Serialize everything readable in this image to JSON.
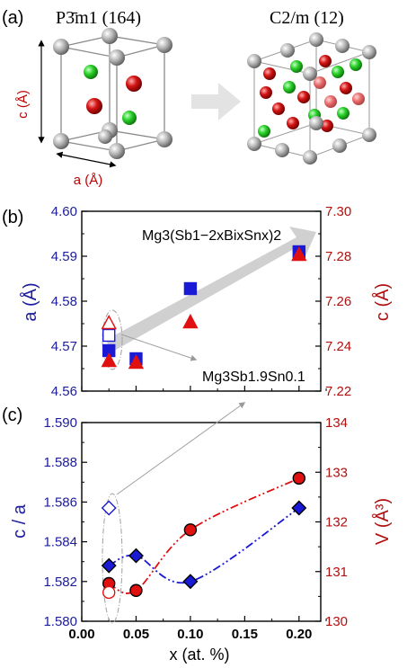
{
  "panels": {
    "a": "(a)",
    "b": "(b)",
    "c": "(c)"
  },
  "structures": {
    "left_space_group": "P3̄m1 (164)",
    "right_space_group": "C2/m (12)",
    "c_axis_label": "c (Å)",
    "a_axis_label": "a (Å)"
  },
  "annotations": {
    "formula_general": "Mg3(Sb1−2xBixSnx)2",
    "formula_ref": "Mg3Sb1.9Sn0.1"
  },
  "colors": {
    "blue": "#1a1ad6",
    "red": "#e01010",
    "axis_blue": "#1c1c9c",
    "axis_red": "#b01010"
  },
  "chart_data": [
    {
      "type": "scatter",
      "panel": "(b)",
      "xlim": [
        0.0,
        0.22
      ],
      "y_left": {
        "label": "a (Å)",
        "lim": [
          4.56,
          4.6
        ],
        "ticks": [
          "4.56",
          "4.57",
          "4.58",
          "4.59",
          "4.60"
        ]
      },
      "y_right": {
        "label": "c (Å)",
        "lim": [
          7.22,
          7.3
        ],
        "ticks": [
          "7.22",
          "7.24",
          "7.26",
          "7.28",
          "7.30"
        ]
      },
      "series": [
        {
          "axis": "left",
          "marker": "filled-square",
          "x": [
            0.025,
            0.05,
            0.1,
            0.2
          ],
          "y": [
            4.569,
            4.5672,
            4.5828,
            4.591
          ]
        },
        {
          "axis": "left",
          "marker": "open-square",
          "x": [
            0.025
          ],
          "y": [
            4.5724
          ]
        },
        {
          "axis": "right",
          "marker": "filled-triangle",
          "x": [
            0.025,
            0.05,
            0.1,
            0.2
          ],
          "y": [
            7.2336,
            7.2328,
            7.2508,
            7.2808
          ]
        },
        {
          "axis": "right",
          "marker": "open-triangle",
          "x": [
            0.025
          ],
          "y": [
            7.2504
          ]
        }
      ]
    },
    {
      "type": "line",
      "panel": "(c)",
      "xlabel": "x (at. %)",
      "xlim": [
        0.0,
        0.22
      ],
      "x_ticks": [
        "0.00",
        "0.05",
        "0.10",
        "0.15",
        "0.20"
      ],
      "y_left": {
        "label": "c / a",
        "lim": [
          1.58,
          1.59
        ],
        "ticks": [
          "1.580",
          "1.582",
          "1.584",
          "1.586",
          "1.588",
          "1.590"
        ]
      },
      "y_right": {
        "label": "V (Å³)",
        "lim": [
          130,
          134
        ],
        "ticks": [
          "130",
          "131",
          "132",
          "133",
          "134"
        ]
      },
      "series": [
        {
          "axis": "left",
          "marker": "filled-diamond",
          "x": [
            0.025,
            0.05,
            0.1,
            0.2
          ],
          "y": [
            1.5828,
            1.5833,
            1.582,
            1.5857
          ]
        },
        {
          "axis": "left",
          "marker": "open-diamond",
          "x": [
            0.025
          ],
          "y": [
            1.5857
          ]
        },
        {
          "axis": "right",
          "marker": "filled-circle",
          "x": [
            0.025,
            0.05,
            0.1,
            0.2
          ],
          "y": [
            130.76,
            130.62,
            131.84,
            132.88
          ]
        },
        {
          "axis": "right",
          "marker": "open-circle",
          "x": [
            0.025
          ],
          "y": [
            130.58
          ]
        }
      ]
    }
  ]
}
